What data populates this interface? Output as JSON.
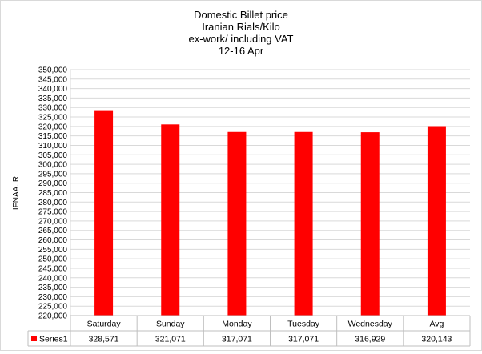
{
  "chart_data": {
    "type": "bar",
    "title_lines": [
      "Domestic Billet price",
      "Iranian  Rials/Kilo",
      "ex-work/ including VAT",
      "12-16  Apr"
    ],
    "ylabel": "IFNAA.IR",
    "xlabel": "",
    "categories": [
      "Saturday",
      "Sunday",
      "Monday",
      "Tuesday",
      "Wednesday",
      "Avg"
    ],
    "series": [
      {
        "name": "Series1",
        "values": [
          328571,
          321071,
          317071,
          317071,
          316929,
          320143
        ],
        "color": "#ff0000"
      }
    ],
    "value_labels": [
      "328,571",
      "321,071",
      "317,071",
      "317,071",
      "316,929",
      "320,143"
    ],
    "ylim": [
      220000,
      350000
    ],
    "ytick_step": 5000,
    "grid": true,
    "legend": "data-table"
  }
}
